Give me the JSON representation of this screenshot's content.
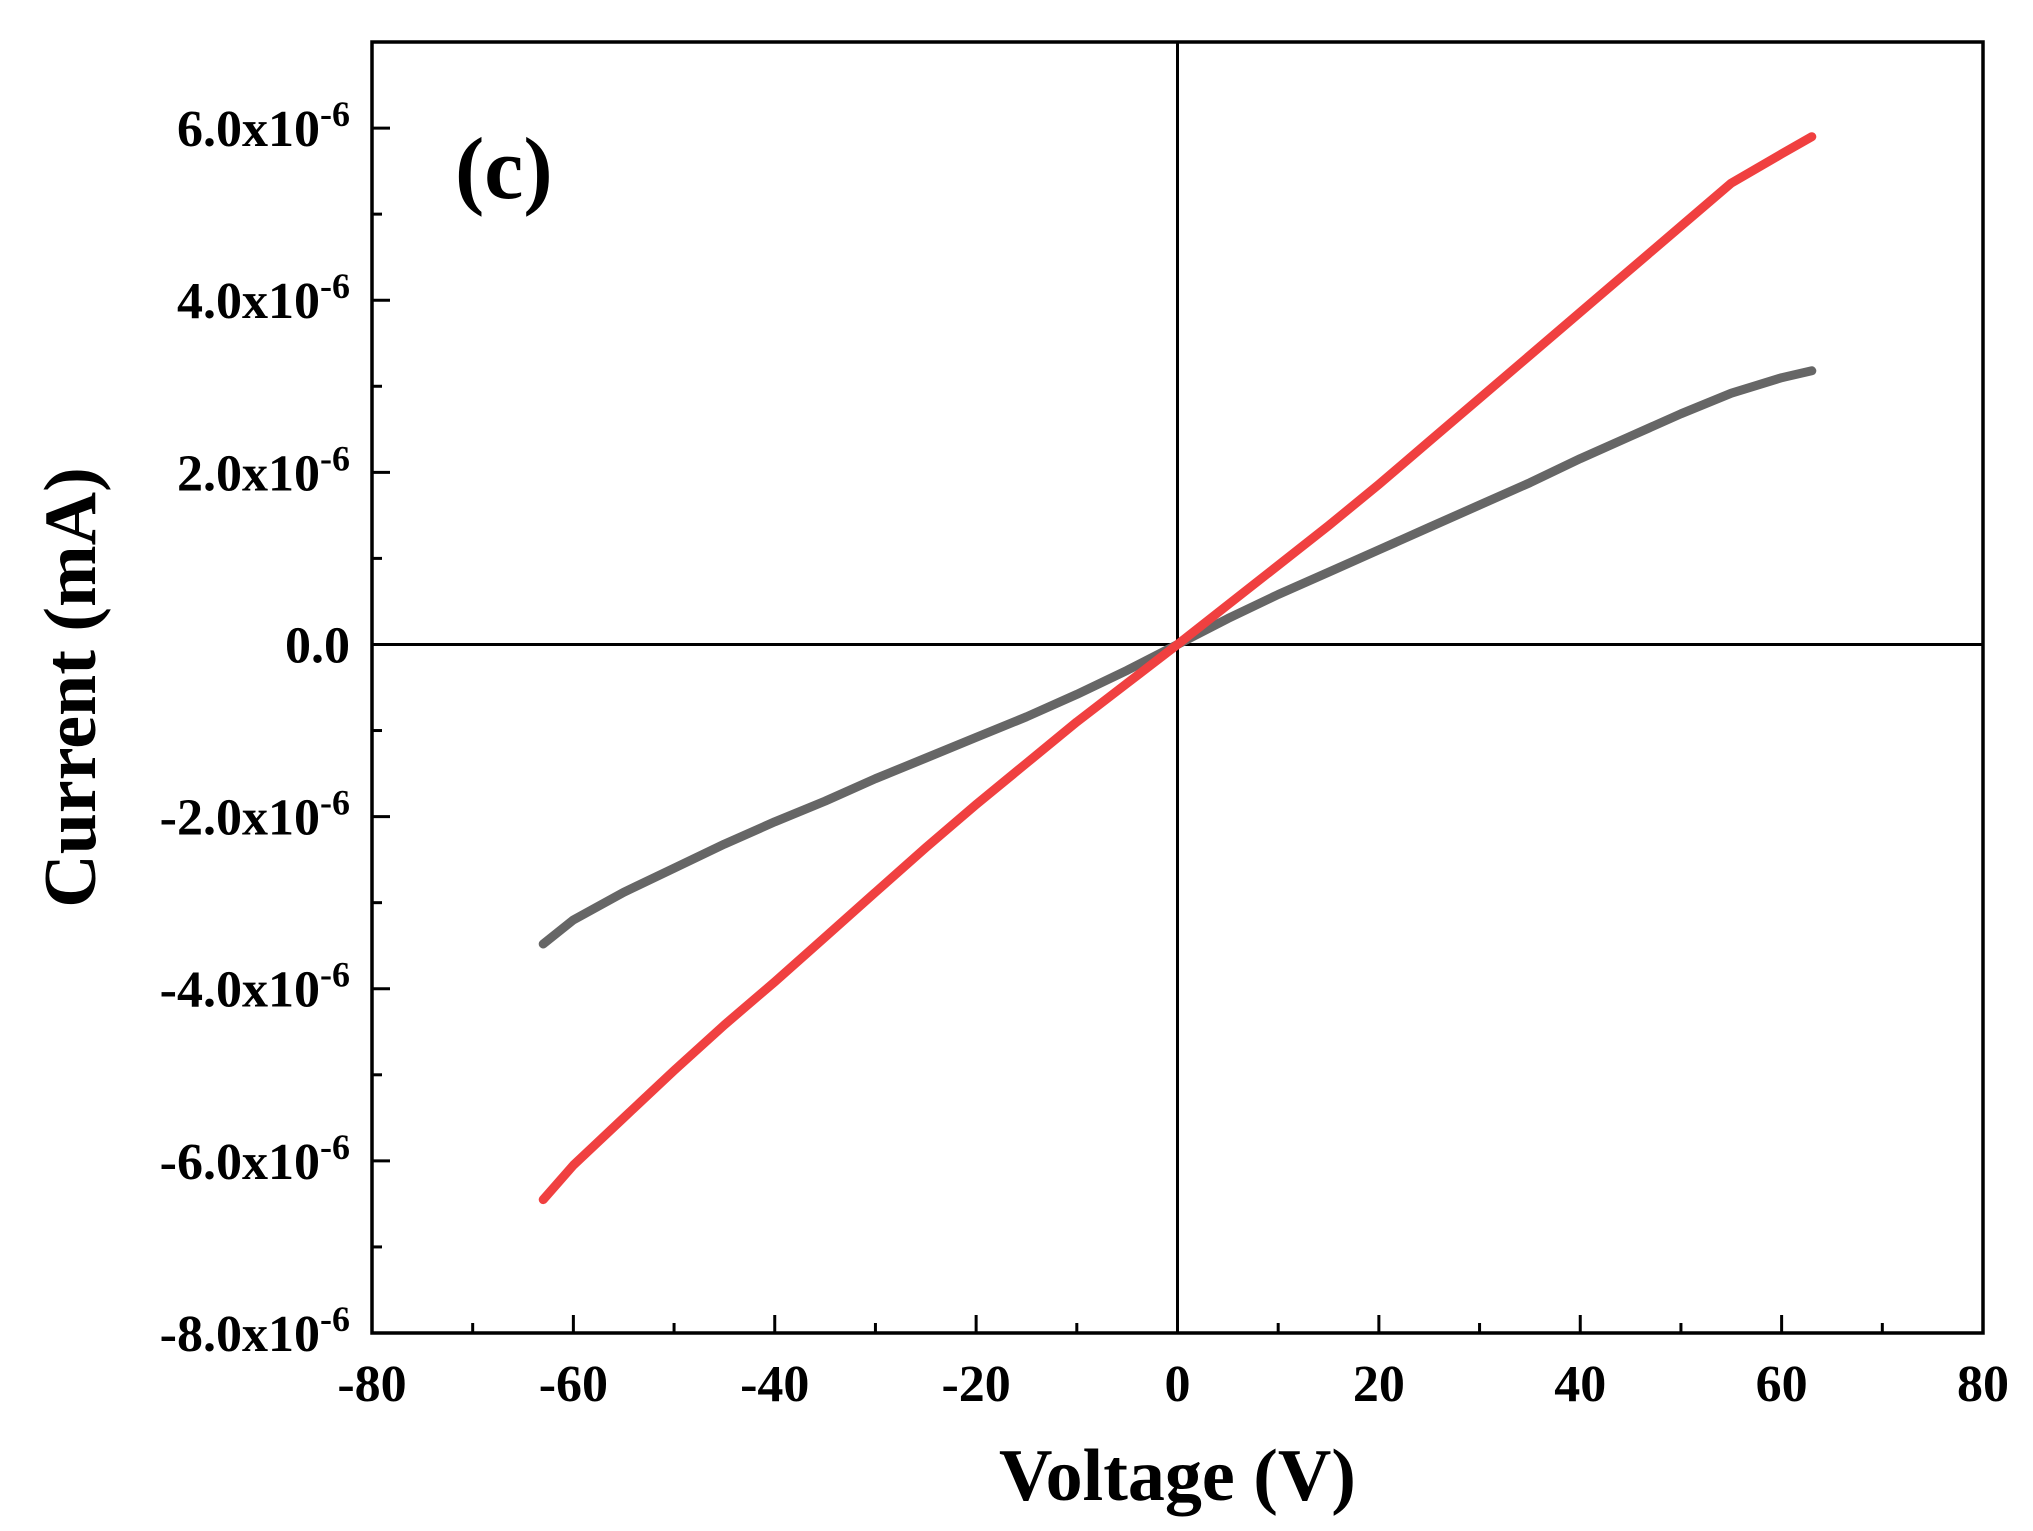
{
  "chart_data": {
    "type": "line",
    "panel_label": "(c)",
    "xlabel": "Voltage (V)",
    "ylabel": "Current (mA)",
    "xlim": [
      -80,
      80
    ],
    "ylim": [
      -8e-06,
      7e-06
    ],
    "grid": false,
    "zero_lines": true,
    "x_ticks": [
      {
        "value": -80,
        "label": "-80"
      },
      {
        "value": -60,
        "label": "-60"
      },
      {
        "value": -40,
        "label": "-40"
      },
      {
        "value": -20,
        "label": "-20"
      },
      {
        "value": 0,
        "label": "0"
      },
      {
        "value": 20,
        "label": "20"
      },
      {
        "value": 40,
        "label": "40"
      },
      {
        "value": 60,
        "label": "60"
      },
      {
        "value": 80,
        "label": "80"
      }
    ],
    "y_ticks": [
      {
        "value": 6e-06,
        "mantissa": "6.0x10",
        "exponent": "-6"
      },
      {
        "value": 4e-06,
        "mantissa": "4.0x10",
        "exponent": "-6"
      },
      {
        "value": 2e-06,
        "mantissa": "2.0x10",
        "exponent": "-6"
      },
      {
        "value": 0,
        "mantissa": "0.0",
        "exponent": ""
      },
      {
        "value": -2e-06,
        "mantissa": "-2.0x10",
        "exponent": "-6"
      },
      {
        "value": -4e-06,
        "mantissa": "-4.0x10",
        "exponent": "-6"
      },
      {
        "value": -6e-06,
        "mantissa": "-6.0x10",
        "exponent": "-6"
      },
      {
        "value": -8e-06,
        "mantissa": "-8.0x10",
        "exponent": "-6"
      }
    ],
    "series": [
      {
        "name": "gray",
        "color": "#666666",
        "x": [
          -63,
          -60,
          -55,
          -50,
          -45,
          -40,
          -35,
          -30,
          -25,
          -20,
          -15,
          -10,
          -5,
          0,
          5,
          10,
          15,
          20,
          25,
          30,
          35,
          40,
          45,
          50,
          55,
          60,
          63
        ],
        "y": [
          -3.48e-06,
          -3.2e-06,
          -2.88e-06,
          -2.6e-06,
          -2.32e-06,
          -2.06e-06,
          -1.82e-06,
          -1.56e-06,
          -1.32e-06,
          -1.08e-06,
          -8.4e-07,
          -5.8e-07,
          -3e-07,
          0.0,
          3e-07,
          5.8e-07,
          8.4e-07,
          1.1e-06,
          1.36e-06,
          1.62e-06,
          1.88e-06,
          2.16e-06,
          2.42e-06,
          2.68e-06,
          2.92e-06,
          3.1e-06,
          3.18e-06
        ]
      },
      {
        "name": "red",
        "color": "#f04040",
        "x": [
          -63,
          -60,
          -55,
          -50,
          -45,
          -40,
          -35,
          -30,
          -25,
          -20,
          -15,
          -10,
          -5,
          0,
          5,
          10,
          15,
          20,
          25,
          30,
          35,
          40,
          45,
          50,
          55,
          60,
          63
        ],
        "y": [
          -6.45e-06,
          -6.05e-06,
          -5.5e-06,
          -4.95e-06,
          -4.42e-06,
          -3.92e-06,
          -3.4e-06,
          -2.88e-06,
          -2.36e-06,
          -1.86e-06,
          -1.38e-06,
          -9e-07,
          -4.5e-07,
          0.0,
          4.6e-07,
          9.2e-07,
          1.38e-06,
          1.86e-06,
          2.36e-06,
          2.86e-06,
          3.36e-06,
          3.86e-06,
          4.36e-06,
          4.86e-06,
          5.36e-06,
          5.7e-06,
          5.9e-06
        ]
      }
    ]
  }
}
